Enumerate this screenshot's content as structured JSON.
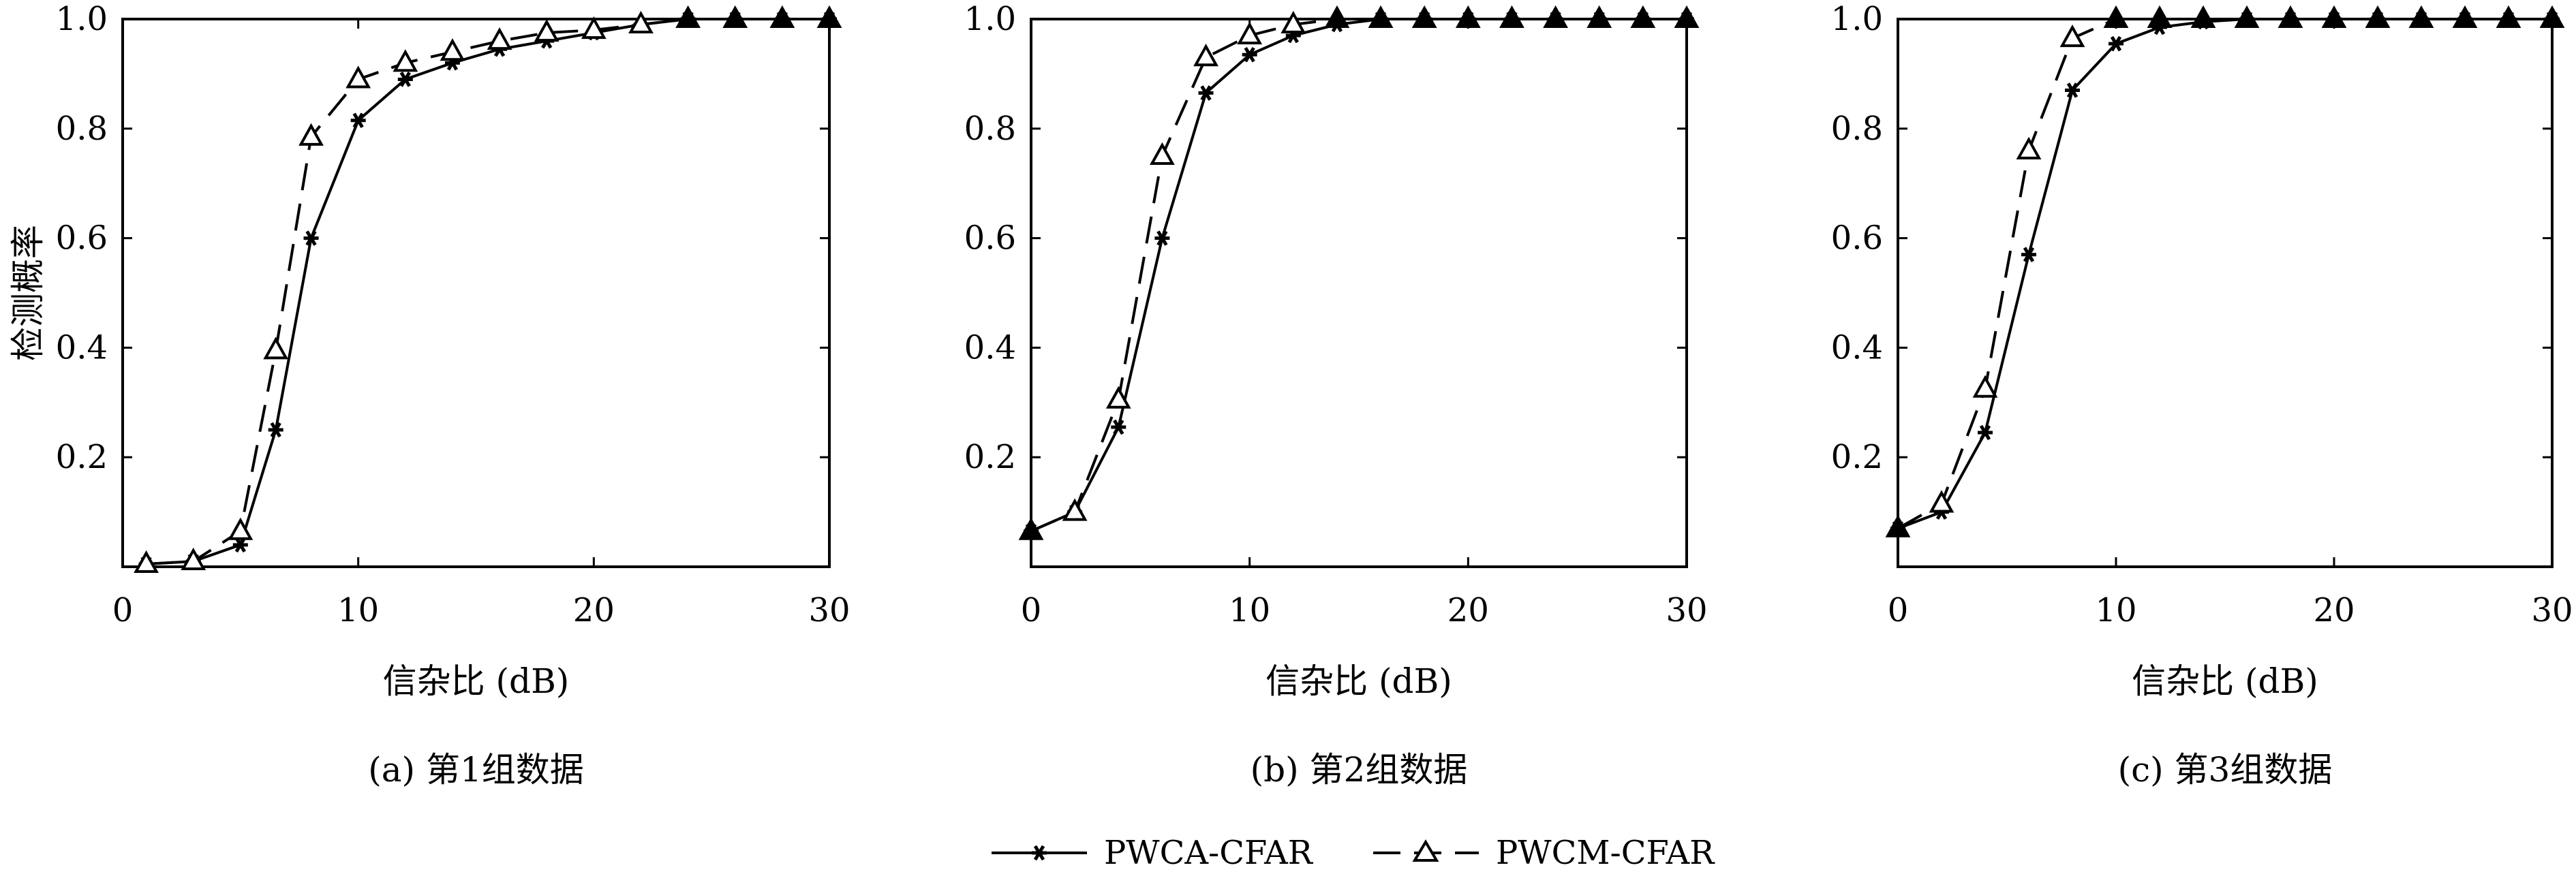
{
  "figure": {
    "legend": {
      "position": "bottom-center",
      "entries": [
        {
          "label": "PWCA-CFAR",
          "style": "solid",
          "marker": "asterisk"
        },
        {
          "label": "PWCM-CFAR",
          "style": "dashed",
          "marker": "triangle"
        }
      ]
    }
  },
  "chart_data": [
    {
      "type": "line",
      "caption": "(a) 第1组数据",
      "xlabel": "信杂比 (dB)",
      "ylabel": "检测概率",
      "xlim": [
        0,
        30
      ],
      "ylim": [
        0,
        1.0
      ],
      "x_ticks": [
        "0",
        "10",
        "20",
        "30"
      ],
      "y_ticks": [
        "0.2",
        "0.4",
        "0.6",
        "0.8",
        "1.0"
      ],
      "grid": false,
      "x": [
        1,
        3,
        5,
        6.5,
        8,
        10,
        12,
        14,
        16,
        18,
        20,
        22,
        24,
        26,
        28,
        30
      ],
      "series": [
        {
          "name": "PWCA-CFAR",
          "values": [
            0.005,
            0.01,
            0.04,
            0.25,
            0.6,
            0.815,
            0.89,
            0.92,
            0.945,
            0.96,
            0.975,
            0.99,
            1.0,
            1.0,
            1.0,
            1.0
          ]
        },
        {
          "name": "PWCM-CFAR",
          "values": [
            0.005,
            0.01,
            0.065,
            0.395,
            0.785,
            0.89,
            0.92,
            0.94,
            0.96,
            0.975,
            0.98,
            0.99,
            1.0,
            1.0,
            1.0,
            1.0
          ]
        }
      ]
    },
    {
      "type": "line",
      "caption": "(b) 第2组数据",
      "xlabel": "信杂比 (dB)",
      "ylabel": "",
      "xlim": [
        0,
        30
      ],
      "ylim": [
        0,
        1.0
      ],
      "x_ticks": [
        "0",
        "10",
        "20",
        "30"
      ],
      "y_ticks": [
        "0.2",
        "0.4",
        "0.6",
        "0.8",
        "1.0"
      ],
      "grid": false,
      "x": [
        0,
        2,
        4,
        6,
        8,
        10,
        12,
        14,
        16,
        18,
        20,
        22,
        24,
        26,
        28,
        30
      ],
      "series": [
        {
          "name": "PWCA-CFAR",
          "values": [
            0.065,
            0.1,
            0.255,
            0.6,
            0.865,
            0.935,
            0.97,
            0.99,
            1.0,
            1.0,
            1.0,
            1.0,
            1.0,
            1.0,
            1.0,
            1.0
          ]
        },
        {
          "name": "PWCM-CFAR",
          "values": [
            0.065,
            0.1,
            0.305,
            0.75,
            0.93,
            0.97,
            0.99,
            1.0,
            1.0,
            1.0,
            1.0,
            1.0,
            1.0,
            1.0,
            1.0,
            1.0
          ]
        }
      ]
    },
    {
      "type": "line",
      "caption": "(c) 第3组数据",
      "xlabel": "信杂比 (dB)",
      "ylabel": "",
      "xlim": [
        0,
        30
      ],
      "ylim": [
        0,
        1.0
      ],
      "x_ticks": [
        "0",
        "10",
        "20",
        "30"
      ],
      "y_ticks": [
        "0.2",
        "0.4",
        "0.6",
        "0.8",
        "1.0"
      ],
      "grid": false,
      "x": [
        0,
        2,
        4,
        6,
        8,
        10,
        12,
        14,
        16,
        18,
        20,
        22,
        24,
        26,
        28,
        30
      ],
      "series": [
        {
          "name": "PWCA-CFAR",
          "values": [
            0.07,
            0.1,
            0.245,
            0.57,
            0.87,
            0.955,
            0.985,
            0.995,
            1.0,
            1.0,
            1.0,
            1.0,
            1.0,
            1.0,
            1.0,
            1.0
          ]
        },
        {
          "name": "PWCM-CFAR",
          "values": [
            0.07,
            0.115,
            0.325,
            0.76,
            0.965,
            1.0,
            1.0,
            1.0,
            1.0,
            1.0,
            1.0,
            1.0,
            1.0,
            1.0,
            1.0,
            1.0
          ]
        }
      ]
    }
  ]
}
